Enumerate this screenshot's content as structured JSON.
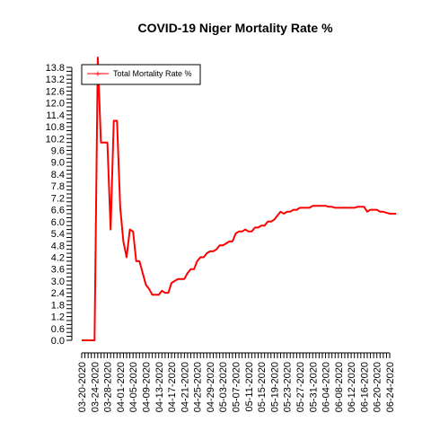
{
  "chart_data": {
    "type": "line",
    "title": "COVID-19 Niger Mortality Rate %",
    "xlabel": "",
    "ylabel": "",
    "ylim": [
      0,
      13.8
    ],
    "y_tick_step": 0.2,
    "y_tick_label_step": 0.6,
    "legend": {
      "placement": "top-left",
      "entries": [
        "Total Mortality Rate %"
      ]
    },
    "grid": false,
    "x_start_date": "2020-03-20",
    "x_tick_labels": [
      "03-20-2020",
      "03-24-2020",
      "03-28-2020",
      "04-01-2020",
      "04-05-2020",
      "04-09-2020",
      "04-13-2020",
      "04-17-2020",
      "04-21-2020",
      "04-25-2020",
      "04-29-2020",
      "05-03-2020",
      "05-07-2020",
      "05-11-2020",
      "05-15-2020",
      "05-19-2020",
      "05-23-2020",
      "05-27-2020",
      "05-31-2020",
      "06-04-2020",
      "06-08-2020",
      "06-12-2020",
      "06-16-2020",
      "06-20-2020",
      "06-24-2020"
    ],
    "x_tick_step_days": 4,
    "series": [
      {
        "name": "Total Mortality Rate %",
        "color": "#ff0000",
        "x": [
          "2020-03-20",
          "2020-03-24",
          "2020-03-25",
          "2020-03-26",
          "2020-03-27",
          "2020-03-28",
          "2020-03-29",
          "2020-03-30",
          "2020-03-31",
          "2020-04-01",
          "2020-04-02",
          "2020-04-03",
          "2020-04-04",
          "2020-04-05",
          "2020-04-06",
          "2020-04-07",
          "2020-04-08",
          "2020-04-09",
          "2020-04-10",
          "2020-04-11",
          "2020-04-12",
          "2020-04-13",
          "2020-04-14",
          "2020-04-15",
          "2020-04-16",
          "2020-04-17",
          "2020-04-18",
          "2020-04-19",
          "2020-04-20",
          "2020-04-21",
          "2020-04-22",
          "2020-04-23",
          "2020-04-24",
          "2020-04-25",
          "2020-04-26",
          "2020-04-27",
          "2020-04-28",
          "2020-04-29",
          "2020-04-30",
          "2020-05-01",
          "2020-05-02",
          "2020-05-03",
          "2020-05-04",
          "2020-05-05",
          "2020-05-06",
          "2020-05-07",
          "2020-05-08",
          "2020-05-09",
          "2020-05-10",
          "2020-05-11",
          "2020-05-12",
          "2020-05-13",
          "2020-05-14",
          "2020-05-15",
          "2020-05-16",
          "2020-05-17",
          "2020-05-18",
          "2020-05-19",
          "2020-05-20",
          "2020-05-21",
          "2020-05-22",
          "2020-05-23",
          "2020-05-24",
          "2020-05-25",
          "2020-05-26",
          "2020-05-27",
          "2020-05-28",
          "2020-05-29",
          "2020-05-30",
          "2020-05-31",
          "2020-06-01",
          "2020-06-02",
          "2020-06-03",
          "2020-06-04",
          "2020-06-05",
          "2020-06-06",
          "2020-06-07",
          "2020-06-08",
          "2020-06-09",
          "2020-06-10",
          "2020-06-11",
          "2020-06-12",
          "2020-06-13",
          "2020-06-14",
          "2020-06-15",
          "2020-06-16",
          "2020-06-17",
          "2020-06-18",
          "2020-06-19",
          "2020-06-20",
          "2020-06-21",
          "2020-06-22",
          "2020-06-23",
          "2020-06-24",
          "2020-06-25",
          "2020-06-26"
        ],
        "values": [
          0.0,
          0.0,
          14.3,
          10.0,
          10.0,
          10.0,
          5.6,
          11.1,
          11.1,
          6.7,
          5.0,
          4.2,
          5.6,
          5.5,
          4.0,
          4.0,
          3.4,
          2.8,
          2.6,
          2.3,
          2.3,
          2.3,
          2.5,
          2.4,
          2.4,
          2.9,
          3.0,
          3.1,
          3.1,
          3.1,
          3.4,
          3.6,
          3.6,
          4.0,
          4.2,
          4.2,
          4.4,
          4.5,
          4.5,
          4.6,
          4.8,
          4.8,
          4.9,
          5.0,
          5.0,
          5.4,
          5.5,
          5.5,
          5.6,
          5.5,
          5.5,
          5.7,
          5.7,
          5.8,
          5.8,
          6.0,
          6.0,
          6.1,
          6.3,
          6.5,
          6.4,
          6.5,
          6.5,
          6.6,
          6.6,
          6.7,
          6.7,
          6.7,
          6.7,
          6.8,
          6.8,
          6.8,
          6.8,
          6.8,
          6.75,
          6.75,
          6.7,
          6.7,
          6.7,
          6.7,
          6.7,
          6.7,
          6.7,
          6.75,
          6.75,
          6.75,
          6.5,
          6.6,
          6.6,
          6.6,
          6.5,
          6.5,
          6.45,
          6.4,
          6.4,
          6.4
        ]
      }
    ]
  }
}
